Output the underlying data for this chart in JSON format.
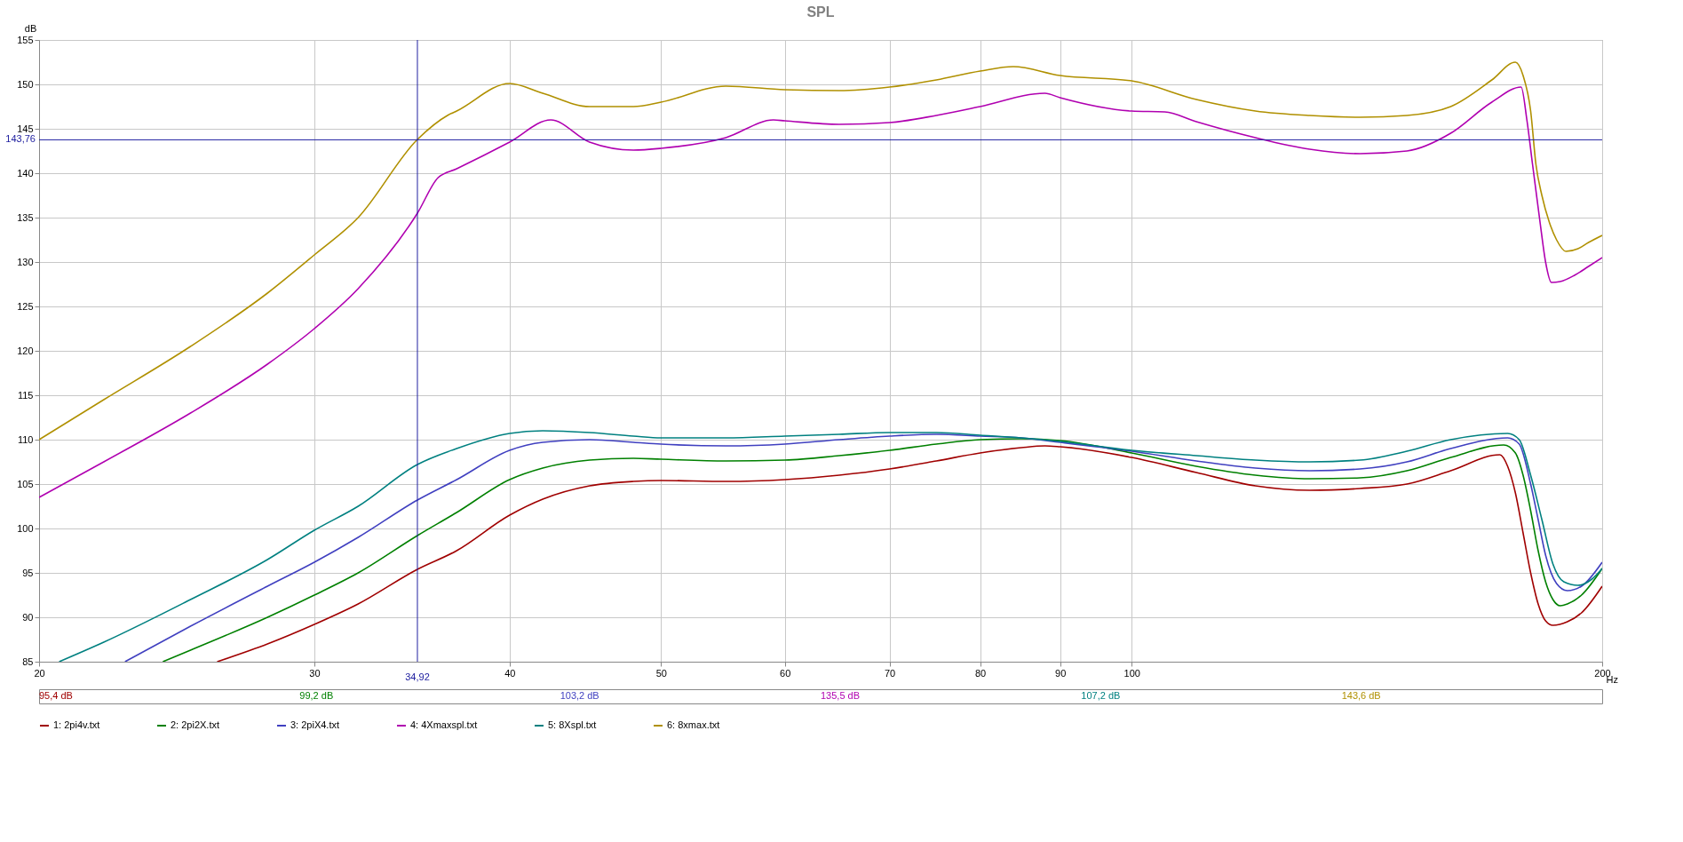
{
  "chart_data": {
    "type": "line",
    "title": "SPL",
    "ylabel": "dB",
    "xlabel": "Hz",
    "xlim": [
      20,
      200
    ],
    "xticks": [
      20,
      30,
      40,
      50,
      60,
      70,
      80,
      90,
      100,
      200
    ],
    "ylim": [
      85,
      155
    ],
    "yticks": [
      85,
      90,
      95,
      100,
      105,
      110,
      115,
      120,
      125,
      130,
      135,
      140,
      145,
      150,
      155
    ],
    "grid": true,
    "log": "x",
    "legend": "bottom",
    "series": [
      {
        "name": "1: 2pi4v.txt",
        "color": "#a00000",
        "x": [
          26,
          28,
          30,
          32,
          34.92,
          37,
          40,
          42,
          45,
          48,
          50,
          55,
          60,
          65,
          70,
          75,
          80,
          85,
          88,
          90,
          100,
          110,
          120,
          130,
          140,
          150,
          160,
          172,
          174,
          176,
          178,
          180,
          182,
          184,
          186,
          190,
          194,
          200
        ],
        "values": [
          85,
          87,
          89.2,
          91.5,
          95.4,
          97.5,
          101.5,
          103.3,
          104.8,
          105.3,
          105.4,
          105.3,
          105.5,
          106,
          106.7,
          107.6,
          108.5,
          109.1,
          109.3,
          109.2,
          108,
          106.3,
          104.8,
          104.3,
          104.5,
          105,
          106.5,
          108.3,
          107,
          104,
          99.5,
          95,
          91.5,
          89.6,
          89.1,
          89.5,
          90.5,
          93.5
        ]
      },
      {
        "name": "2: 2pi2X.txt",
        "color": "#008000",
        "x": [
          24,
          25,
          28,
          30,
          32,
          34.92,
          37,
          40,
          42,
          45,
          48,
          50,
          55,
          60,
          65,
          70,
          75,
          80,
          85,
          90,
          100,
          110,
          120,
          130,
          140,
          150,
          160,
          173,
          176,
          178,
          180,
          182,
          184,
          186,
          188,
          190,
          194,
          200
        ],
        "values": [
          85,
          86.3,
          90,
          92.5,
          95,
          99.2,
          101.8,
          105.5,
          106.8,
          107.7,
          107.9,
          107.8,
          107.6,
          107.7,
          108.2,
          108.8,
          109.5,
          110,
          110.1,
          109.9,
          108.5,
          107,
          106,
          105.6,
          105.7,
          106.5,
          108,
          109.4,
          108.5,
          106,
          102,
          97.5,
          94,
          92,
          91.3,
          91.5,
          92.5,
          95.5
        ]
      },
      {
        "name": "3: 2piX4.txt",
        "color": "#4040c0",
        "x": [
          22.7,
          25,
          28,
          30,
          32,
          34.92,
          37,
          40,
          42,
          45,
          48,
          50,
          55,
          60,
          65,
          70,
          75,
          80,
          85,
          90,
          100,
          110,
          120,
          130,
          140,
          150,
          160,
          174,
          177,
          180,
          182,
          184,
          187,
          190,
          194,
          200
        ],
        "values": [
          85,
          89,
          93.5,
          96.2,
          99,
          103.2,
          105.5,
          108.8,
          109.7,
          110,
          109.7,
          109.5,
          109.3,
          109.5,
          110,
          110.4,
          110.6,
          110.4,
          110.2,
          109.7,
          108.7,
          107.6,
          106.8,
          106.5,
          106.7,
          107.5,
          109,
          110.2,
          109.5,
          105,
          101,
          97,
          93.8,
          93,
          93.5,
          96.2
        ]
      },
      {
        "name": "4: 4Xmaxspl.txt",
        "color": "#b000b0",
        "x": [
          20,
          22,
          25,
          28,
          30,
          32,
          34.92,
          36,
          37,
          40,
          42.5,
          45,
          48,
          50,
          55,
          59,
          60,
          65,
          70,
          75,
          80,
          88,
          90,
          100,
          105,
          110,
          120,
          130,
          140,
          150,
          160,
          170,
          177.5,
          179,
          180.5,
          182.5,
          184,
          185.6,
          188,
          192,
          196,
          200
        ],
        "values": [
          103.5,
          107.5,
          113,
          118.5,
          122.5,
          127,
          135.5,
          139.5,
          140.5,
          143.5,
          146,
          143.5,
          142.6,
          142.8,
          144,
          146,
          145.9,
          145.5,
          145.7,
          146.5,
          147.5,
          149,
          148.5,
          147,
          146.9,
          145.8,
          144,
          142.7,
          142.2,
          142.5,
          144.5,
          148,
          149.7,
          146,
          141,
          134.5,
          130,
          127.7,
          127.8,
          128.5,
          129.5,
          130.5
        ]
      },
      {
        "name": "5: 8Xspl.txt",
        "color": "#008080",
        "x": [
          20.6,
          22,
          25,
          28,
          30,
          32,
          34.92,
          37,
          40,
          42,
          45,
          48,
          50,
          55,
          60,
          65,
          70,
          75,
          80,
          85,
          90,
          100,
          110,
          120,
          130,
          140,
          150,
          160,
          174,
          177,
          180,
          183,
          186,
          189,
          193,
          197,
          200
        ],
        "values": [
          85,
          87.2,
          92,
          96.5,
          99.8,
          102.5,
          107.2,
          109,
          110.7,
          111,
          110.8,
          110.4,
          110.2,
          110.2,
          110.4,
          110.6,
          110.8,
          110.8,
          110.5,
          110.2,
          109.8,
          108.8,
          108.2,
          107.7,
          107.5,
          107.7,
          108.7,
          110,
          110.7,
          110,
          106,
          101,
          96,
          94,
          93.6,
          94.3,
          95.5
        ]
      },
      {
        "name": "6: 8xmax.txt",
        "color": "#b09000",
        "x": [
          20,
          22,
          25,
          28,
          30,
          32,
          34.92,
          36.5,
          37,
          40,
          42,
          45,
          48,
          50,
          55,
          60,
          65,
          70,
          75,
          80,
          84,
          90,
          100,
          110,
          120,
          130,
          140,
          150,
          160,
          170,
          176,
          178,
          180,
          181.4,
          183,
          185,
          187,
          189.6,
          193,
          196,
          200
        ],
        "values": [
          110,
          114.5,
          120.5,
          126.5,
          130.8,
          135,
          143.8,
          146.5,
          147,
          150.1,
          149,
          147.5,
          147.5,
          148,
          149.8,
          149.4,
          149.3,
          149.7,
          150.5,
          151.5,
          152,
          151,
          150.4,
          148.3,
          147,
          146.5,
          146.3,
          146.5,
          147.5,
          150.5,
          152.5,
          151,
          147,
          141,
          137.5,
          134.5,
          132.5,
          131.2,
          131.5,
          132.2,
          133
        ]
      }
    ],
    "ref_lines": [
      {
        "axis": "x",
        "value": 34.92,
        "label": "34,92",
        "color": "#2020a0"
      },
      {
        "axis": "y",
        "value": 143.76,
        "label": "143,76",
        "color": "#2020a0"
      }
    ],
    "annotations": [
      "95,4 dB",
      "99,2 dB",
      "103,2 dB",
      "135,5 dB",
      "107,2 dB",
      "143,6 dB"
    ]
  }
}
